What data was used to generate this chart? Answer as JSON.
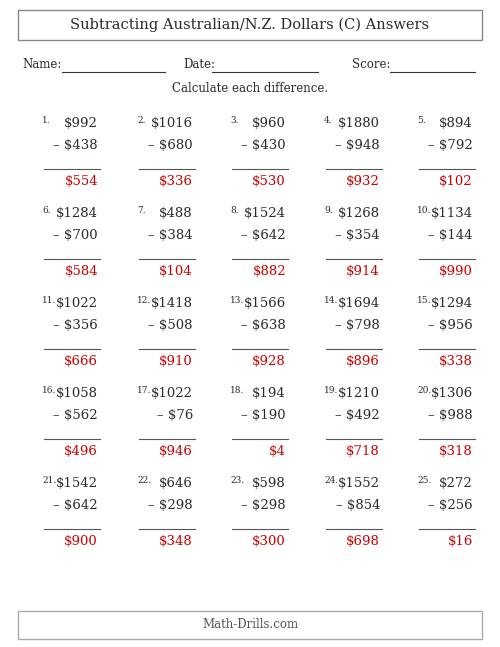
{
  "title": "Subtracting Australian/N.Z. Dollars (C) Answers",
  "subtitle": "Calculate each difference.",
  "name_label": "Name:",
  "date_label": "Date:",
  "score_label": "Score:",
  "problems": [
    {
      "num": "1.",
      "top": "$992",
      "sub": "– $438",
      "ans": "$554"
    },
    {
      "num": "2.",
      "top": "$1016",
      "sub": "– $680",
      "ans": "$336"
    },
    {
      "num": "3.",
      "top": "$960",
      "sub": "– $430",
      "ans": "$530"
    },
    {
      "num": "4.",
      "top": "$1880",
      "sub": "– $948",
      "ans": "$932"
    },
    {
      "num": "5.",
      "top": "$894",
      "sub": "– $792",
      "ans": "$102"
    },
    {
      "num": "6.",
      "top": "$1284",
      "sub": "– $700",
      "ans": "$584"
    },
    {
      "num": "7.",
      "top": "$488",
      "sub": "– $384",
      "ans": "$104"
    },
    {
      "num": "8.",
      "top": "$1524",
      "sub": "– $642",
      "ans": "$882"
    },
    {
      "num": "9.",
      "top": "$1268",
      "sub": "– $354",
      "ans": "$914"
    },
    {
      "num": "10.",
      "top": "$1134",
      "sub": "– $144",
      "ans": "$990"
    },
    {
      "num": "11.",
      "top": "$1022",
      "sub": "– $356",
      "ans": "$666"
    },
    {
      "num": "12.",
      "top": "$1418",
      "sub": "– $508",
      "ans": "$910"
    },
    {
      "num": "13.",
      "top": "$1566",
      "sub": "– $638",
      "ans": "$928"
    },
    {
      "num": "14.",
      "top": "$1694",
      "sub": "– $798",
      "ans": "$896"
    },
    {
      "num": "15.",
      "top": "$1294",
      "sub": "– $956",
      "ans": "$338"
    },
    {
      "num": "16.",
      "top": "$1058",
      "sub": "– $562",
      "ans": "$496"
    },
    {
      "num": "17.",
      "top": "$1022",
      "sub": "– $76",
      "ans": "$946"
    },
    {
      "num": "18.",
      "top": "$194",
      "sub": "– $190",
      "ans": "$4"
    },
    {
      "num": "19.",
      "top": "$1210",
      "sub": "– $492",
      "ans": "$718"
    },
    {
      "num": "20.",
      "top": "$1306",
      "sub": "– $988",
      "ans": "$318"
    },
    {
      "num": "21.",
      "top": "$1542",
      "sub": "– $642",
      "ans": "$900"
    },
    {
      "num": "22.",
      "top": "$646",
      "sub": "– $298",
      "ans": "$348"
    },
    {
      "num": "23.",
      "top": "$598",
      "sub": "– $298",
      "ans": "$300"
    },
    {
      "num": "24.",
      "top": "$1552",
      "sub": "– $854",
      "ans": "$698"
    },
    {
      "num": "25.",
      "top": "$272",
      "sub": "– $256",
      "ans": "$16"
    }
  ],
  "bg_color": "#ffffff",
  "text_color": "#2b2b2b",
  "answer_color": "#cc0000",
  "footer": "Math-Drills.com"
}
